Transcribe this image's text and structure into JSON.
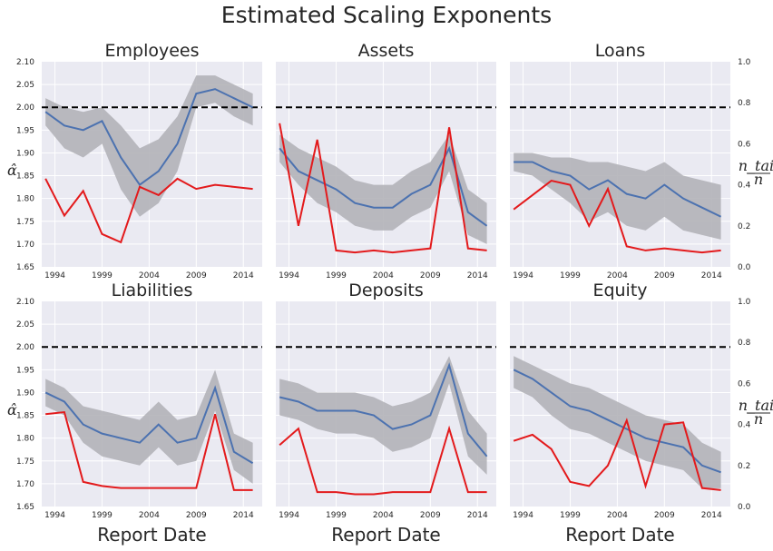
{
  "title": "Estimated Scaling Exponents",
  "shared": {
    "xlabel": "Report Date",
    "ylabel_left": "α̂",
    "ylabel_right_num": "n_tail",
    "ylabel_right_den": "n",
    "x_ticks": [
      "1994",
      "1999",
      "2004",
      "2009",
      "2014"
    ],
    "x_tick_values": [
      1994,
      1999,
      2004,
      2009,
      2014
    ],
    "xlim": [
      1992.6,
      2016.0
    ],
    "left_ylim": [
      1.65,
      2.1
    ],
    "left_ticks": [
      "1.65",
      "1.70",
      "1.75",
      "1.80",
      "1.85",
      "1.90",
      "1.95",
      "2.00",
      "2.05",
      "2.10"
    ],
    "left_tick_values": [
      1.65,
      1.7,
      1.75,
      1.8,
      1.85,
      1.9,
      1.95,
      2.0,
      2.05,
      2.1
    ],
    "right_ylim": [
      0.0,
      1.0
    ],
    "right_ticks": [
      "0.0",
      "0.2",
      "0.4",
      "0.6",
      "0.8",
      "1.0"
    ],
    "right_tick_values": [
      0.0,
      0.2,
      0.4,
      0.6,
      0.8,
      1.0
    ],
    "reference_line": 2.0
  },
  "colors": {
    "panel_bg": "#eaeaf2",
    "grid": "#ffffff",
    "alpha_line": "#4c72b0",
    "band": "#b3b3b8",
    "tail_line": "#e31a1c",
    "reference": "#000000"
  },
  "chart_data": [
    {
      "type": "line",
      "title": "Employees",
      "x": [
        1993,
        1995,
        1997,
        1999,
        2001,
        2003,
        2005,
        2007,
        2009,
        2011,
        2013,
        2015
      ],
      "series": [
        {
          "values": [
            1.99,
            1.96,
            1.95,
            1.97,
            1.89,
            1.83,
            1.86,
            1.92,
            2.03,
            2.04,
            2.02,
            2.0
          ],
          "band_low": [
            1.96,
            1.91,
            1.89,
            1.92,
            1.82,
            1.76,
            1.79,
            1.86,
            2.0,
            2.01,
            1.98,
            1.96
          ],
          "band_high": [
            2.02,
            2.0,
            1.99,
            2.0,
            1.96,
            1.91,
            1.93,
            1.98,
            2.07,
            2.07,
            2.05,
            2.03
          ]
        },
        {
          "values": [
            0.43,
            0.25,
            0.37,
            0.16,
            0.12,
            0.39,
            0.35,
            0.43,
            0.38,
            0.4,
            0.39,
            0.38
          ]
        }
      ]
    },
    {
      "type": "line",
      "title": "Assets",
      "x": [
        1993,
        1995,
        1997,
        1999,
        2001,
        2003,
        2005,
        2007,
        2009,
        2011,
        2013,
        2015
      ],
      "series": [
        {
          "values": [
            1.91,
            1.86,
            1.84,
            1.82,
            1.79,
            1.78,
            1.78,
            1.81,
            1.83,
            1.91,
            1.77,
            1.74
          ],
          "band_low": [
            1.88,
            1.83,
            1.79,
            1.77,
            1.74,
            1.73,
            1.73,
            1.76,
            1.78,
            1.86,
            1.72,
            1.7
          ],
          "band_high": [
            1.94,
            1.91,
            1.89,
            1.87,
            1.84,
            1.83,
            1.83,
            1.86,
            1.88,
            1.94,
            1.82,
            1.79
          ]
        },
        {
          "values": [
            0.7,
            0.2,
            0.62,
            0.08,
            0.07,
            0.08,
            0.07,
            0.08,
            0.09,
            0.68,
            0.09,
            0.08
          ]
        }
      ]
    },
    {
      "type": "line",
      "title": "Loans",
      "x": [
        1993,
        1995,
        1997,
        1999,
        2001,
        2003,
        2005,
        2007,
        2009,
        2011,
        2013,
        2015
      ],
      "series": [
        {
          "values": [
            1.88,
            1.88,
            1.86,
            1.85,
            1.82,
            1.84,
            1.81,
            1.8,
            1.83,
            1.8,
            1.78,
            1.76
          ],
          "band_low": [
            1.86,
            1.85,
            1.82,
            1.79,
            1.75,
            1.77,
            1.74,
            1.73,
            1.76,
            1.73,
            1.72,
            1.71
          ],
          "band_high": [
            1.9,
            1.9,
            1.89,
            1.89,
            1.88,
            1.88,
            1.87,
            1.86,
            1.88,
            1.85,
            1.84,
            1.83
          ]
        },
        {
          "values": [
            0.28,
            0.35,
            0.42,
            0.4,
            0.2,
            0.38,
            0.1,
            0.08,
            0.09,
            0.08,
            0.07,
            0.08
          ]
        }
      ]
    },
    {
      "type": "line",
      "title": "Liabilities",
      "x": [
        1993,
        1995,
        1997,
        1999,
        2001,
        2003,
        2005,
        2007,
        2009,
        2011,
        2013,
        2015
      ],
      "series": [
        {
          "values": [
            1.9,
            1.88,
            1.83,
            1.81,
            1.8,
            1.79,
            1.83,
            1.79,
            1.8,
            1.91,
            1.77,
            1.745
          ],
          "band_low": [
            1.87,
            1.85,
            1.79,
            1.76,
            1.75,
            1.74,
            1.78,
            1.74,
            1.75,
            1.86,
            1.73,
            1.7
          ],
          "band_high": [
            1.93,
            1.91,
            1.87,
            1.86,
            1.85,
            1.84,
            1.88,
            1.84,
            1.85,
            1.95,
            1.81,
            1.79
          ]
        },
        {
          "values": [
            0.45,
            0.46,
            0.12,
            0.1,
            0.09,
            0.09,
            0.09,
            0.09,
            0.09,
            0.45,
            0.08,
            0.08
          ]
        }
      ]
    },
    {
      "type": "line",
      "title": "Deposits",
      "x": [
        1993,
        1995,
        1997,
        1999,
        2001,
        2003,
        2005,
        2007,
        2009,
        2011,
        2013,
        2015
      ],
      "series": [
        {
          "values": [
            1.89,
            1.88,
            1.86,
            1.86,
            1.86,
            1.85,
            1.82,
            1.83,
            1.85,
            1.96,
            1.81,
            1.76
          ],
          "band_low": [
            1.85,
            1.84,
            1.82,
            1.81,
            1.81,
            1.8,
            1.77,
            1.78,
            1.8,
            1.92,
            1.76,
            1.72
          ],
          "band_high": [
            1.93,
            1.92,
            1.9,
            1.9,
            1.9,
            1.89,
            1.87,
            1.88,
            1.9,
            1.98,
            1.86,
            1.81
          ]
        },
        {
          "values": [
            0.3,
            0.38,
            0.07,
            0.07,
            0.06,
            0.06,
            0.07,
            0.07,
            0.07,
            0.38,
            0.07,
            0.07
          ]
        }
      ]
    },
    {
      "type": "line",
      "title": "Equity",
      "x": [
        1993,
        1995,
        1997,
        1999,
        2001,
        2003,
        2005,
        2007,
        2009,
        2011,
        2013,
        2015
      ],
      "series": [
        {
          "values": [
            1.95,
            1.93,
            1.9,
            1.87,
            1.86,
            1.84,
            1.82,
            1.8,
            1.79,
            1.78,
            1.74,
            1.725
          ],
          "band_low": [
            1.91,
            1.89,
            1.85,
            1.82,
            1.81,
            1.79,
            1.77,
            1.75,
            1.74,
            1.73,
            1.69,
            1.69
          ],
          "band_high": [
            1.98,
            1.96,
            1.94,
            1.92,
            1.91,
            1.89,
            1.87,
            1.85,
            1.84,
            1.83,
            1.79,
            1.77
          ]
        },
        {
          "values": [
            0.32,
            0.35,
            0.28,
            0.12,
            0.1,
            0.2,
            0.42,
            0.1,
            0.4,
            0.41,
            0.09,
            0.08
          ]
        }
      ]
    }
  ]
}
